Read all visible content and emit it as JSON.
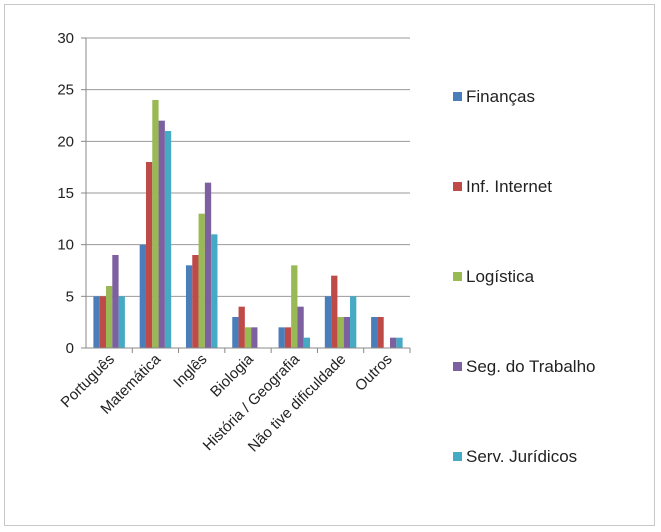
{
  "chart_data": {
    "type": "bar",
    "categories": [
      "Português",
      "Matemática",
      "Inglês",
      "Biologia",
      "História / Geografia",
      "Não tive dificuldade",
      "Outros"
    ],
    "series": [
      {
        "name": "Finanças",
        "color": "#4a7ebb",
        "values": [
          5,
          10,
          8,
          3,
          2,
          5,
          3
        ]
      },
      {
        "name": "Inf. Internet",
        "color": "#be4b48",
        "values": [
          5,
          18,
          9,
          4,
          2,
          7,
          3
        ]
      },
      {
        "name": "Logística",
        "color": "#98b954",
        "values": [
          6,
          24,
          13,
          2,
          8,
          3,
          0
        ]
      },
      {
        "name": "Seg. do Trabalho",
        "color": "#7d60a0",
        "values": [
          9,
          22,
          16,
          2,
          4,
          3,
          1
        ]
      },
      {
        "name": "Serv. Jurídicos",
        "color": "#46aac5",
        "values": [
          5,
          21,
          11,
          0,
          1,
          5,
          1
        ]
      }
    ],
    "ylim": [
      0,
      30
    ],
    "yticks": [
      "0",
      "5",
      "10",
      "15",
      "20",
      "25",
      "30"
    ],
    "grid": true,
    "legend_position": "right"
  }
}
